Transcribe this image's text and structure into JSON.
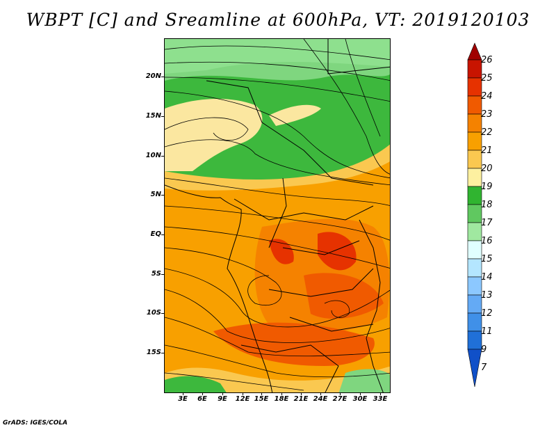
{
  "title": "WBPT [C] and Sreamline at 600hPa, VT: 2019120103",
  "map": {
    "lat_labels": [
      "20N",
      "15N",
      "10N",
      "5N",
      "EQ",
      "5S",
      "10S",
      "15S"
    ],
    "lon_labels": [
      "3E",
      "6E",
      "9E",
      "12E",
      "15E",
      "18E",
      "21E",
      "24E",
      "27E",
      "30E",
      "33E"
    ]
  },
  "colorbar": {
    "labels": [
      "26",
      "25",
      "24",
      "23",
      "22",
      "21",
      "20",
      "19",
      "18",
      "17",
      "16",
      "15",
      "14",
      "13",
      "12",
      "11",
      "9",
      "7"
    ],
    "colors": {
      "c26": "#a00000",
      "c25": "#c81400",
      "c24": "#e63200",
      "c23": "#f05a00",
      "c22": "#f58200",
      "c21": "#f8a000",
      "c20": "#fac850",
      "c19": "#fdf0a0",
      "c18": "#30b430",
      "c17": "#60c860",
      "c16": "#a0e8a0",
      "c15": "#e0ffff",
      "c14": "#b4e6ff",
      "c13": "#8cc8ff",
      "c12": "#64aaf5",
      "c11": "#4090e8",
      "c9": "#2070d8",
      "c7": "#1050c8"
    }
  },
  "credit": "GrADS: IGES/COLA"
}
